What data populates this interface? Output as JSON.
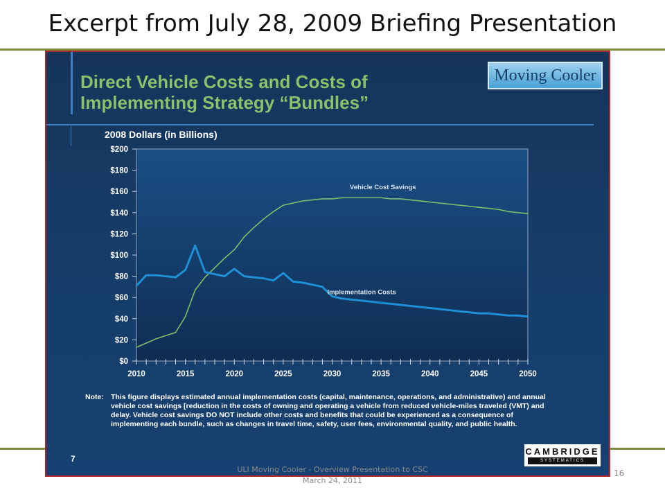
{
  "page": {
    "title": "Excerpt from July 28, 2009 Briefing Presentation",
    "footer": "ULI Moving Cooler - Overview Presentation to CSC March 24, 2011",
    "page_number": "16"
  },
  "slide": {
    "heading": "Direct Vehicle Costs and Costs of Implementing Strategy “Bundles”",
    "brand": "Moving Cooler",
    "note_label": "Note:",
    "note_text": "This figure displays estimated annual implementation costs (capital, maintenance, operations, and administrative) and annual vehicle cost savings [reduction in the costs of owning and operating a vehicle from reduced vehicle-miles traveled (VMT) and delay. Vehicle cost savings DO NOT include other costs and benefits that could be experienced as a consequence of implementing each bundle, such as changes in travel time, safety, user fees, environmental quality, and public health.",
    "slide_number": "7",
    "logo_main": "CAMBRIDGE",
    "logo_sub": "SYSTEMATICS"
  },
  "colors": {
    "savings_line": "#7fbf6a",
    "implementation_line": "#1f8fd6",
    "heading": "#8dc06a",
    "slide_border": "#b3262b",
    "rule": "#7a8a3a"
  },
  "chart_data": {
    "type": "line",
    "title": "2008 Dollars (in Billions)",
    "xlabel": "",
    "ylabel": "2008 Dollars (in Billions)",
    "xlim": [
      2010,
      2050
    ],
    "ylim": [
      0,
      200
    ],
    "x_ticks": [
      "2010",
      "2015",
      "2020",
      "2025",
      "2030",
      "2035",
      "2040",
      "2045",
      "2050"
    ],
    "y_ticks": [
      "$0",
      "$20",
      "$40",
      "$60",
      "$80",
      "$100",
      "$120",
      "$140",
      "$160",
      "$180",
      "$200"
    ],
    "grid": false,
    "x": [
      2010,
      2011,
      2012,
      2013,
      2014,
      2015,
      2016,
      2017,
      2018,
      2019,
      2020,
      2021,
      2022,
      2023,
      2024,
      2025,
      2026,
      2027,
      2028,
      2029,
      2030,
      2031,
      2032,
      2033,
      2034,
      2035,
      2036,
      2037,
      2038,
      2039,
      2040,
      2041,
      2042,
      2043,
      2044,
      2045,
      2046,
      2047,
      2048,
      2049,
      2050
    ],
    "series": [
      {
        "name": "Vehicle Cost Savings",
        "values": [
          13,
          17,
          21,
          24,
          27,
          42,
          67,
          79,
          88,
          97,
          105,
          117,
          126,
          134,
          141,
          147,
          149,
          151,
          152,
          153,
          153,
          154,
          154,
          154,
          154,
          154,
          153,
          153,
          152,
          151,
          150,
          149,
          148,
          147,
          146,
          145,
          144,
          143,
          141,
          140,
          139
        ]
      },
      {
        "name": "Implementation Costs",
        "values": [
          71,
          81,
          81,
          80,
          79,
          86,
          109,
          84,
          82,
          80,
          87,
          80,
          79,
          78,
          76,
          83,
          75,
          74,
          72,
          70,
          61,
          59,
          58,
          57,
          56,
          55,
          54,
          53,
          52,
          51,
          50,
          49,
          48,
          47,
          46,
          45,
          45,
          44,
          43,
          43,
          42
        ]
      }
    ]
  }
}
